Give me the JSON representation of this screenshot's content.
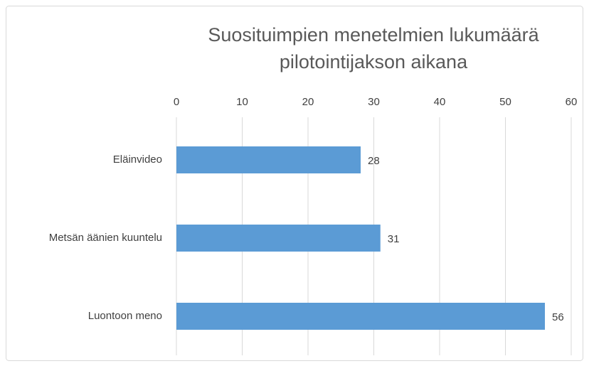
{
  "chart_data": {
    "type": "hbar",
    "title": "Suosituimpien menetelmien lukumäärä pilotointijakson aikana",
    "categories": [
      "Eläinvideo",
      "Metsän äänien kuuntelu",
      "Luontoon meno"
    ],
    "values": [
      28,
      31,
      56
    ],
    "color": "#5b9bd5",
    "xlim": [
      0,
      60
    ],
    "xticks": [
      0,
      10,
      20,
      30,
      40,
      50,
      60
    ],
    "grid": true
  }
}
